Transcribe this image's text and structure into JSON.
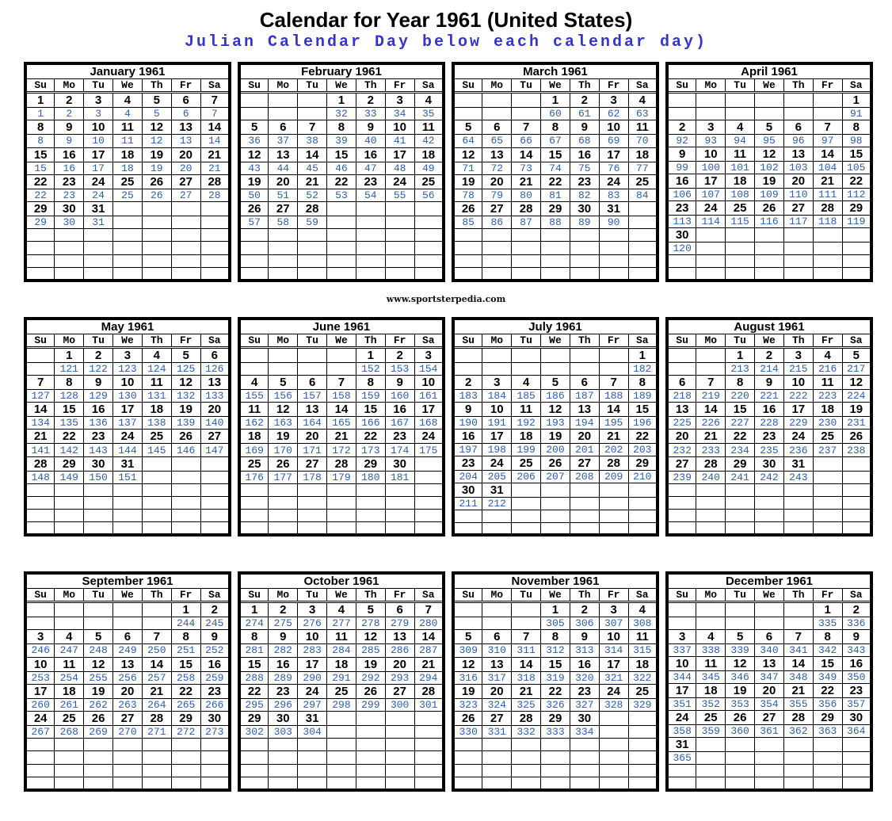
{
  "page": {
    "title": "Calendar for Year 1961 (United States)",
    "subtitle": "Julian Calendar Day below each calendar day)",
    "watermark": "www.sportsterpedia.com"
  },
  "colors": {
    "julian_number_blue": "#2a5db4",
    "subtitle_blue": "#3535cd",
    "grid_black": "#000000",
    "background": "#ffffff"
  },
  "day_headers": [
    "Su",
    "Mo",
    "Tu",
    "We",
    "Th",
    "Fr",
    "Sa"
  ],
  "layout": {
    "rows_per_month_grid": 14,
    "months_per_row": 4
  },
  "months": [
    {
      "name": "January 1961",
      "first_day_col": 0,
      "num_days": 31,
      "julian_first": 1,
      "julian_last": 31
    },
    {
      "name": "February 1961",
      "first_day_col": 3,
      "num_days": 28,
      "julian_first": 32,
      "julian_last": 59
    },
    {
      "name": "March 1961",
      "first_day_col": 3,
      "num_days": 31,
      "julian_first": 60,
      "julian_last": 90
    },
    {
      "name": "April 1961",
      "first_day_col": 6,
      "num_days": 30,
      "julian_first": 91,
      "julian_last": 120
    },
    {
      "name": "May 1961",
      "first_day_col": 1,
      "num_days": 31,
      "julian_first": 121,
      "julian_last": 151
    },
    {
      "name": "June 1961",
      "first_day_col": 4,
      "num_days": 30,
      "julian_first": 152,
      "julian_last": 181
    },
    {
      "name": "July 1961",
      "first_day_col": 6,
      "num_days": 31,
      "julian_first": 182,
      "julian_last": 212
    },
    {
      "name": "August 1961",
      "first_day_col": 2,
      "num_days": 31,
      "julian_first": 213,
      "julian_last": 243
    },
    {
      "name": "September 1961",
      "first_day_col": 5,
      "num_days": 30,
      "julian_first": 244,
      "julian_last": 273
    },
    {
      "name": "October 1961",
      "first_day_col": 0,
      "num_days": 31,
      "julian_first": 274,
      "julian_last": 304
    },
    {
      "name": "November 1961",
      "first_day_col": 3,
      "num_days": 30,
      "julian_first": 305,
      "julian_last": 334
    },
    {
      "name": "December 1961",
      "first_day_col": 5,
      "num_days": 31,
      "julian_first": 335,
      "julian_last": 365
    }
  ]
}
